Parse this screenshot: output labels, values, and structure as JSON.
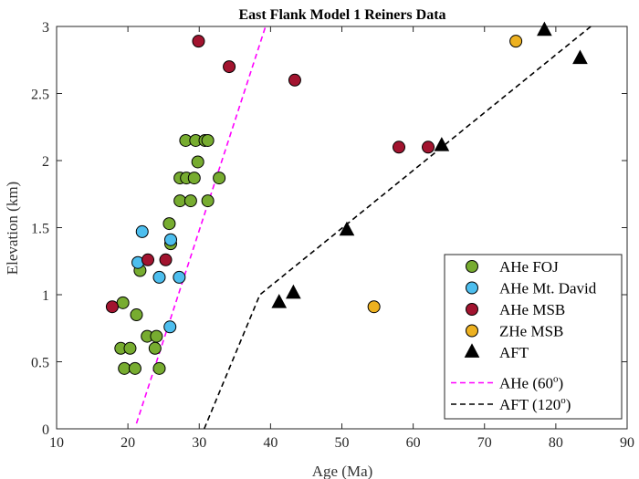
{
  "chart_data": {
    "type": "scatter",
    "title": "East Flank Model 1 Reiners Data",
    "xlabel": "Age (Ma)",
    "ylabel": "Elevation (km)",
    "xlim": [
      10,
      90
    ],
    "ylim": [
      0,
      3
    ],
    "xticks": [
      "10",
      "20",
      "30",
      "40",
      "50",
      "60",
      "70",
      "80",
      "90"
    ],
    "yticks": [
      "0",
      "0.5",
      "1",
      "1.5",
      "2",
      "2.5",
      "3"
    ],
    "grid": false,
    "legend_position": "bottom-right",
    "series": [
      {
        "name": "AHe FOJ",
        "marker": "circle",
        "color": "#77ac30",
        "points": [
          [
            19.3,
            0.94
          ],
          [
            21.2,
            0.85
          ],
          [
            19.0,
            0.6
          ],
          [
            20.3,
            0.6
          ],
          [
            19.5,
            0.45
          ],
          [
            21.0,
            0.45
          ],
          [
            22.7,
            0.69
          ],
          [
            24.0,
            0.69
          ],
          [
            23.8,
            0.6
          ],
          [
            24.4,
            0.45
          ],
          [
            21.7,
            1.18
          ],
          [
            25.8,
            1.53
          ],
          [
            26.0,
            1.38
          ],
          [
            27.3,
            1.7
          ],
          [
            28.8,
            1.7
          ],
          [
            31.2,
            1.7
          ],
          [
            27.3,
            1.87
          ],
          [
            28.2,
            1.87
          ],
          [
            29.3,
            1.87
          ],
          [
            32.8,
            1.87
          ],
          [
            29.8,
            1.99
          ],
          [
            28.1,
            2.15
          ],
          [
            29.5,
            2.15
          ],
          [
            30.8,
            2.15
          ],
          [
            31.2,
            2.15
          ]
        ]
      },
      {
        "name": "AHe Mt. David",
        "marker": "circle",
        "color": "#4dbeee",
        "points": [
          [
            22.0,
            1.47
          ],
          [
            21.4,
            1.24
          ],
          [
            26.0,
            1.41
          ],
          [
            24.4,
            1.13
          ],
          [
            27.2,
            1.13
          ],
          [
            25.9,
            0.76
          ]
        ]
      },
      {
        "name": "AHe MSB",
        "marker": "circle",
        "color": "#a2142f",
        "points": [
          [
            17.8,
            0.91
          ],
          [
            22.8,
            1.26
          ],
          [
            25.3,
            1.26
          ],
          [
            29.9,
            2.89
          ],
          [
            34.2,
            2.7
          ],
          [
            43.4,
            2.6
          ],
          [
            58.0,
            2.1
          ],
          [
            62.1,
            2.1
          ]
        ]
      },
      {
        "name": "ZHe MSB",
        "marker": "circle",
        "color": "#edb120",
        "points": [
          [
            54.5,
            0.91
          ],
          [
            74.4,
            2.89
          ]
        ]
      },
      {
        "name": "AFT",
        "marker": "triangle",
        "color": "#000000",
        "points": [
          [
            41.2,
            0.94
          ],
          [
            43.2,
            1.01
          ],
          [
            50.7,
            1.48
          ],
          [
            64.0,
            2.11
          ],
          [
            78.4,
            2.97
          ],
          [
            83.4,
            2.76
          ]
        ]
      }
    ],
    "lines": [
      {
        "name": "AHe (60°)",
        "legend_base": "AHe (60",
        "legend_sup": "o",
        "legend_tail": ")",
        "color": "#ff00ff",
        "dash": "dashed",
        "points": [
          [
            21.2,
            0.04
          ],
          [
            39.3,
            3.0
          ]
        ]
      },
      {
        "name": "AFT (120°)",
        "legend_base": "AFT (120",
        "legend_sup": "o",
        "legend_tail": ")",
        "color": "#000000",
        "dash": "dashed",
        "points": [
          [
            30.7,
            0.0
          ],
          [
            38.5,
            1.0
          ],
          [
            84.9,
            3.0
          ]
        ]
      }
    ]
  }
}
